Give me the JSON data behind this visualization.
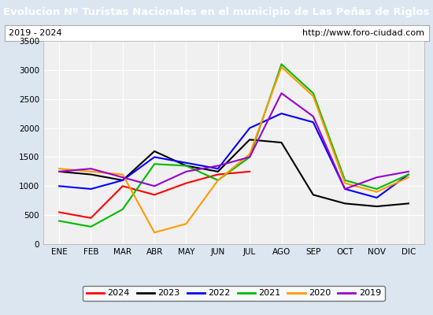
{
  "title": "Evolucion Nº Turistas Nacionales en el municipio de Las Peñas de Riglos",
  "subtitle_left": "2019 - 2024",
  "subtitle_right": "http://www.foro-ciudad.com",
  "months": [
    "ENE",
    "FEB",
    "MAR",
    "ABR",
    "MAY",
    "JUN",
    "JUL",
    "AGO",
    "SEP",
    "OCT",
    "NOV",
    "DIC"
  ],
  "series": {
    "2024": {
      "color": "#ff0000",
      "data": [
        550,
        450,
        1000,
        850,
        1050,
        1200,
        1250,
        null,
        null,
        null,
        null,
        null
      ]
    },
    "2023": {
      "color": "#000000",
      "data": [
        1250,
        1200,
        1100,
        1600,
        1350,
        1250,
        1800,
        1750,
        850,
        700,
        650,
        700
      ]
    },
    "2022": {
      "color": "#0000ff",
      "data": [
        1000,
        950,
        1100,
        1500,
        1400,
        1300,
        2000,
        2250,
        2100,
        950,
        800,
        1200
      ]
    },
    "2021": {
      "color": "#00bb00",
      "data": [
        400,
        300,
        600,
        1380,
        1350,
        1100,
        1500,
        3100,
        2600,
        1100,
        950,
        1200
      ]
    },
    "2020": {
      "color": "#ff9900",
      "data": [
        1300,
        1250,
        1200,
        200,
        350,
        1100,
        1550,
        3050,
        2550,
        1050,
        900,
        1150
      ]
    },
    "2019": {
      "color": "#9900cc",
      "data": [
        1250,
        1300,
        1150,
        1000,
        1250,
        1350,
        1500,
        2600,
        2200,
        950,
        1150,
        1250
      ]
    }
  },
  "ylim": [
    0,
    3500
  ],
  "yticks": [
    0,
    500,
    1000,
    1500,
    2000,
    2500,
    3000,
    3500
  ],
  "title_bg_color": "#4a90d9",
  "title_font_color": "#ffffff",
  "plot_bg_color": "#f0f0f0",
  "outer_bg_color": "#dce6f0",
  "grid_color": "#ffffff",
  "legend_order": [
    "2024",
    "2023",
    "2022",
    "2021",
    "2020",
    "2019"
  ]
}
